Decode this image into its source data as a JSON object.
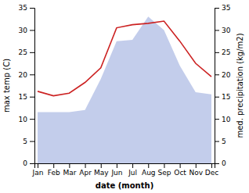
{
  "chart_data": {
    "type": "line",
    "xlabel": "date (month)",
    "ylabel": "max temp (C)",
    "y2label": "med. precipitation (kg/m2)",
    "categories": [
      "Jan",
      "Feb",
      "Mar",
      "Apr",
      "May",
      "Jun",
      "Jul",
      "Aug",
      "Sep",
      "Oct",
      "Nov",
      "Dec"
    ],
    "series": [
      {
        "type": "line",
        "color": "#cc2222",
        "values": [
          16.2,
          15.2,
          15.8,
          18.2,
          21.5,
          30.5,
          31.2,
          31.5,
          32.0,
          27.5,
          22.5,
          19.5
        ]
      },
      {
        "type": "area",
        "axis": "y2",
        "color": "#b8c4e8",
        "values": [
          11.5,
          11.5,
          11.5,
          12.0,
          19.0,
          27.5,
          27.8,
          33.0,
          30.0,
          22.0,
          16.0,
          15.5
        ]
      }
    ],
    "ylim": [
      0,
      35
    ],
    "yticks": [
      0,
      5,
      10,
      15,
      20,
      25,
      30,
      35
    ],
    "y2lim": [
      0,
      35
    ],
    "y2ticks": [
      0,
      5,
      10,
      15,
      20,
      25,
      30,
      35
    ],
    "grid": false
  }
}
